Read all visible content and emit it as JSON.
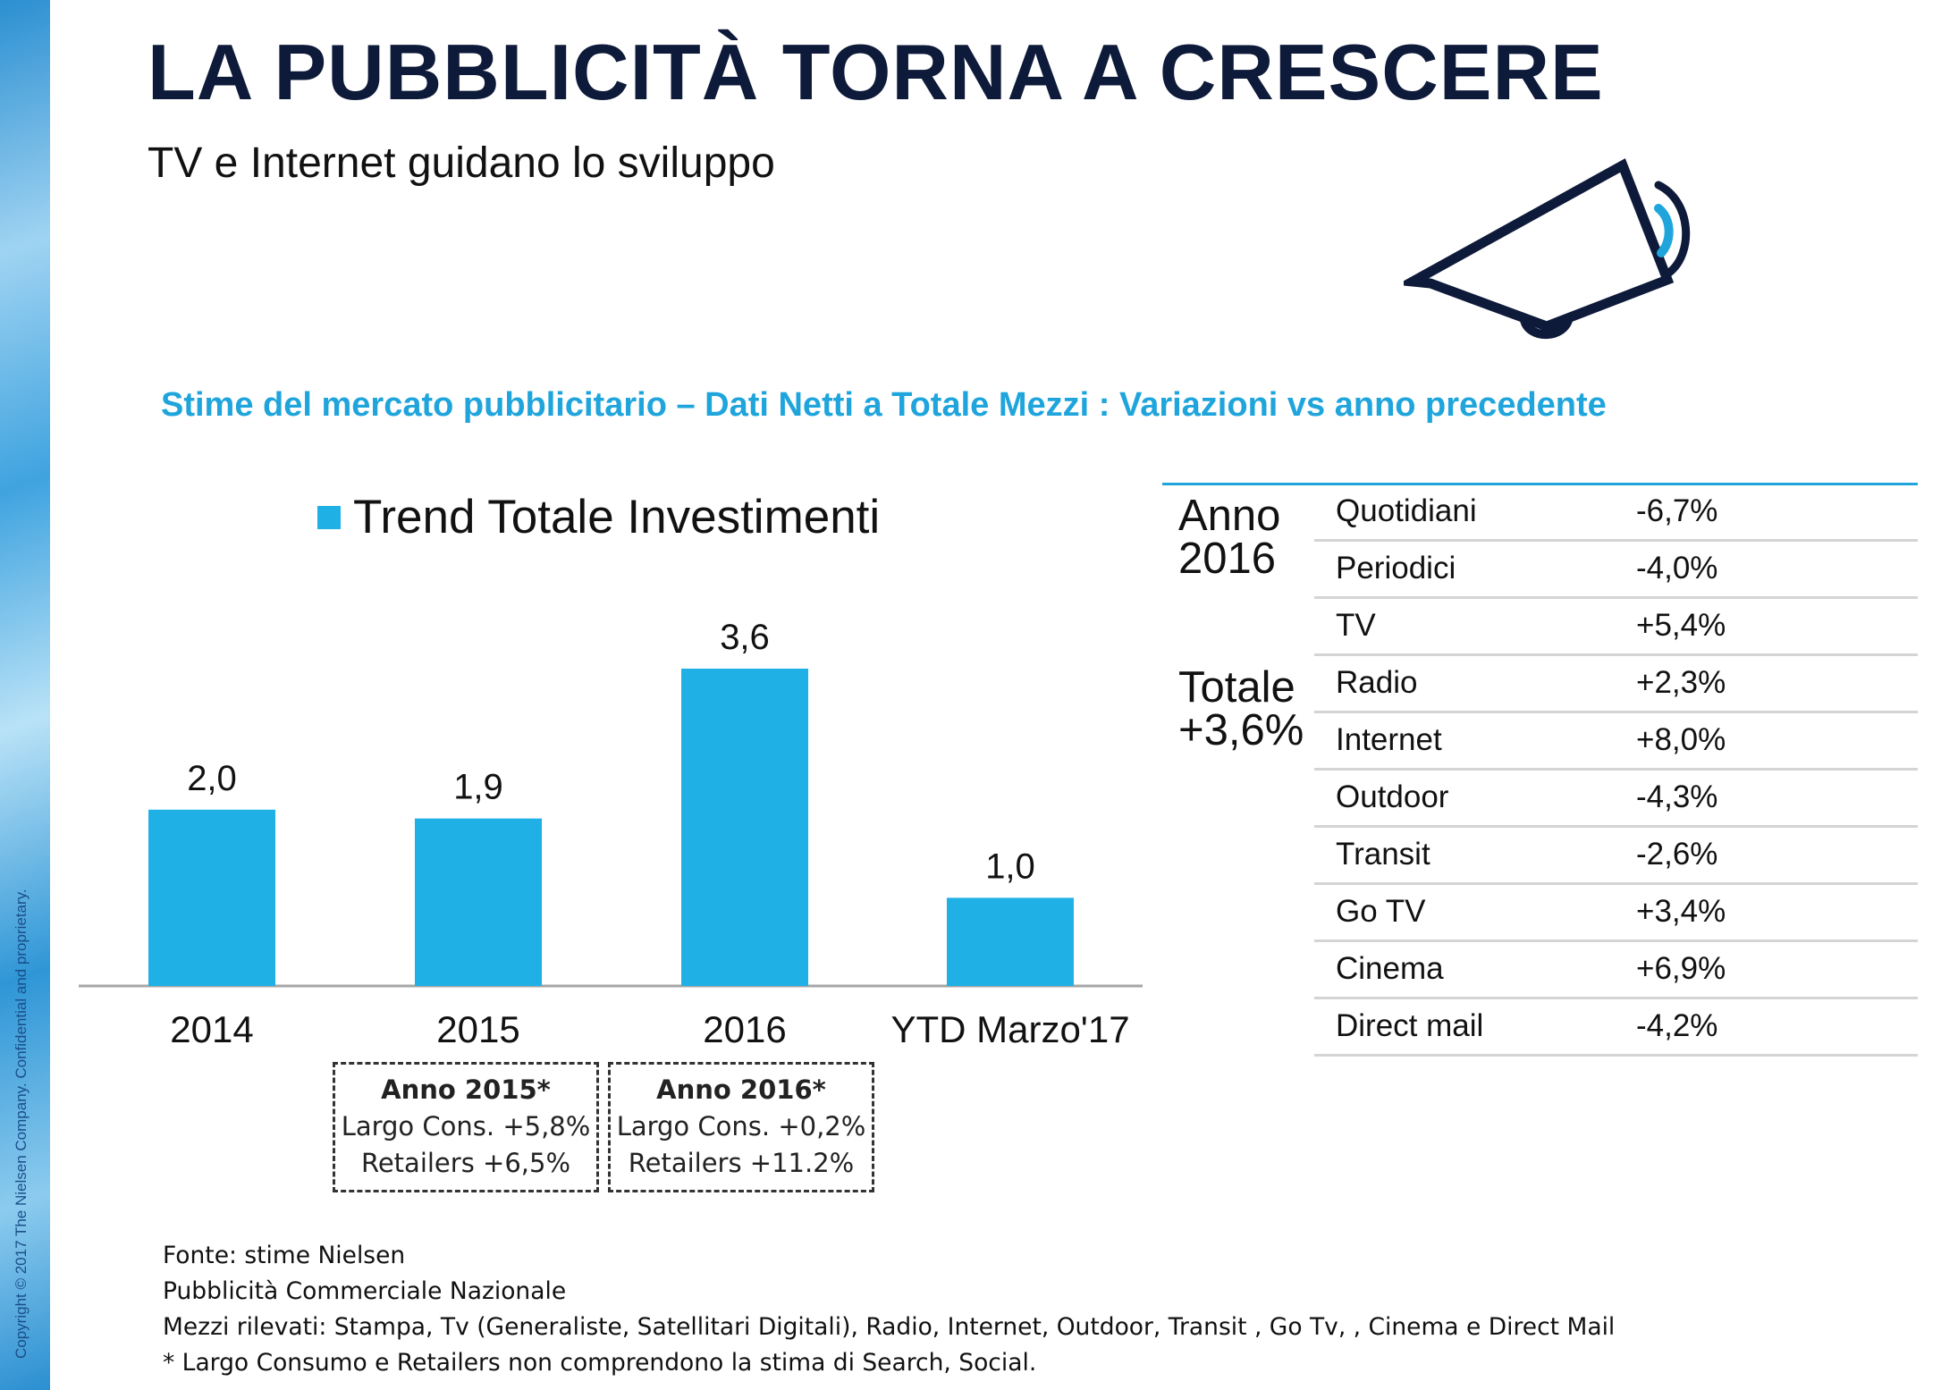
{
  "header": {
    "title": "LA PUBBLICITÀ TORNA A CRESCERE",
    "subtitle": "TV e Internet guidano lo sviluppo"
  },
  "sidebar": {
    "copyright": "Copyright © 2017 The Nielsen Company. Confidential and proprietary."
  },
  "icons": {
    "megaphone": "megaphone-icon"
  },
  "colors": {
    "bar": "#1fb0e6",
    "heading": "#1fa5dc",
    "title": "#0e1a3a"
  },
  "chart_heading": "Stime del mercato pubblicitario – Dati Netti a Totale Mezzi : Variazioni vs anno precedente",
  "chart_data": {
    "type": "bar",
    "categories": [
      "2014",
      "2015",
      "2016",
      "YTD Marzo'17"
    ],
    "series": [
      {
        "name": "Trend Totale Investimenti",
        "values": [
          2.0,
          1.9,
          3.6,
          1.0
        ]
      }
    ],
    "data_labels": [
      "2,0",
      "1,9",
      "3,6",
      "1,0"
    ],
    "ylim": [
      0,
      3.6
    ],
    "legend": "top",
    "grid": false
  },
  "notes": [
    {
      "title": "Anno 2015*",
      "line1": "Largo Cons. +5,8%",
      "line2": "Retailers +6,5%"
    },
    {
      "title": "Anno 2016*",
      "line1": "Largo Cons. +0,2%",
      "line2": "Retailers +11.2%"
    }
  ],
  "media_table": {
    "year_label_1": "Anno",
    "year_label_2": "2016",
    "total_label_1": "Totale",
    "total_label_2": "+3,6%",
    "rows": [
      {
        "medium": "Quotidiani",
        "change": "-6,7%"
      },
      {
        "medium": "Periodici",
        "change": "-4,0%"
      },
      {
        "medium": "TV",
        "change": "+5,4%"
      },
      {
        "medium": "Radio",
        "change": "+2,3%"
      },
      {
        "medium": "Internet",
        "change": "+8,0%"
      },
      {
        "medium": "Outdoor",
        "change": "-4,3%"
      },
      {
        "medium": "Transit",
        "change": "-2,6%"
      },
      {
        "medium": "Go TV",
        "change": "+3,4%"
      },
      {
        "medium": "Cinema",
        "change": "+6,9%"
      },
      {
        "medium": "Direct mail",
        "change": "-4,2%"
      }
    ]
  },
  "footer": {
    "line1": "Fonte: stime Nielsen",
    "line2": "Pubblicità Commerciale Nazionale",
    "line3": "Mezzi rilevati: Stampa, Tv (Generaliste, Satellitari Digitali), Radio, Internet, Outdoor, Transit , Go Tv, , Cinema e Direct Mail",
    "line4": "* Largo Consumo e  Retailers non comprendono la stima di Search, Social."
  }
}
